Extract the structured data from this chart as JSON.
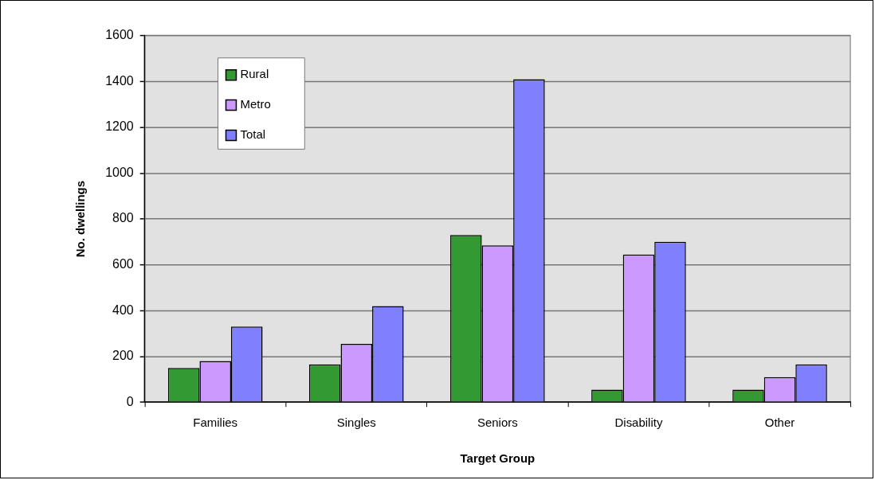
{
  "chart_data": {
    "type": "bar",
    "xlabel": "Target Group",
    "ylabel": "No. dwellings",
    "categories": [
      "Families",
      "Singles",
      "Seniors",
      "Disability",
      "Other"
    ],
    "series": [
      {
        "name": "Rural",
        "color": "#339933",
        "values": [
          150,
          165,
          730,
          55,
          55
        ]
      },
      {
        "name": "Metro",
        "color": "#cc99ff",
        "values": [
          180,
          255,
          685,
          645,
          110
        ]
      },
      {
        "name": "Total",
        "color": "#8080ff",
        "values": [
          330,
          420,
          1410,
          700,
          165
        ]
      }
    ],
    "ylim": [
      0,
      1600
    ],
    "yticks": [
      0,
      200,
      400,
      600,
      800,
      1000,
      1200,
      1400,
      1600
    ],
    "grid": "y",
    "legend": "top left"
  }
}
